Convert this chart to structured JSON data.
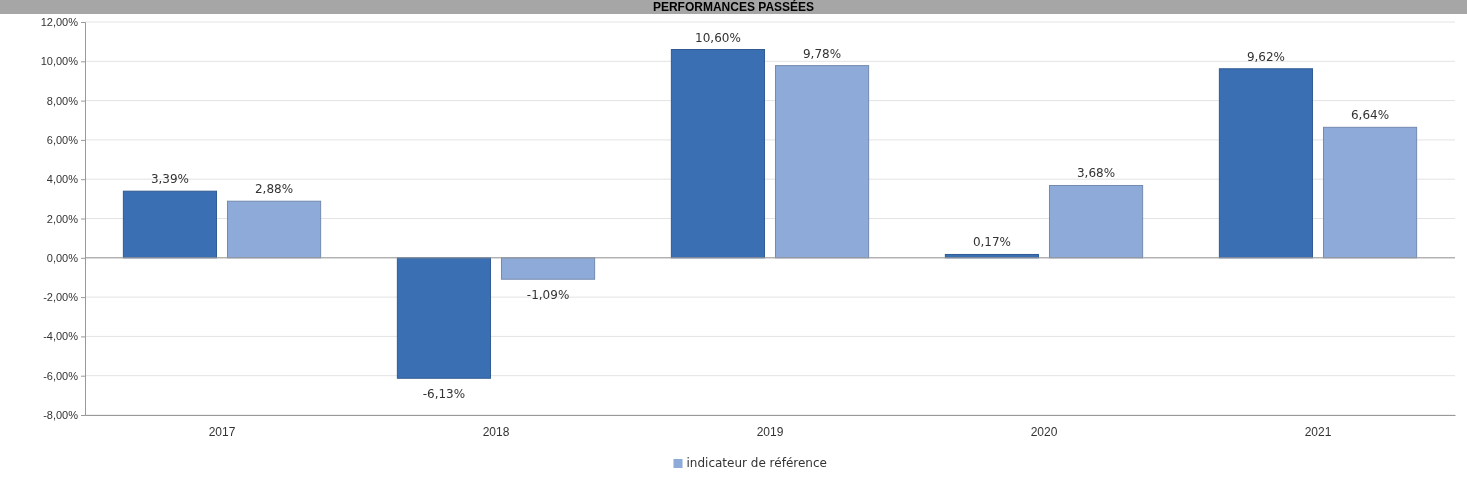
{
  "chart_data": {
    "type": "bar",
    "title": "PERFORMANCES PASSÉES",
    "categories": [
      "2017",
      "2018",
      "2019",
      "2020",
      "2021"
    ],
    "series": [
      {
        "color": "#3b6fb3",
        "values": [
          3.39,
          -6.13,
          10.6,
          0.17,
          9.62
        ],
        "value_labels": [
          "3,39%",
          "-6,13%",
          "10,60%",
          "0,17%",
          "9,62%"
        ]
      },
      {
        "name": "indicateur de référence",
        "color": "#8eaad8",
        "values": [
          2.88,
          -1.09,
          9.78,
          3.68,
          6.64
        ],
        "value_labels": [
          "2,88%",
          "-1,09%",
          "9,78%",
          "3,68%",
          "6,64%"
        ]
      }
    ],
    "ylim": [
      -8,
      12
    ],
    "yticks": [
      {
        "value": -8,
        "label": "-8,00%"
      },
      {
        "value": -6,
        "label": "-6,00%"
      },
      {
        "value": -4,
        "label": "-4,00%"
      },
      {
        "value": -2,
        "label": "-2,00%"
      },
      {
        "value": 0,
        "label": "0,00%"
      },
      {
        "value": 2,
        "label": "2,00%"
      },
      {
        "value": 4,
        "label": "4,00%"
      },
      {
        "value": 6,
        "label": "6,00%"
      },
      {
        "value": 8,
        "label": "8,00%"
      },
      {
        "value": 10,
        "label": "10,00%"
      },
      {
        "value": 12,
        "label": "12,00%"
      }
    ],
    "grid": "y",
    "legend": "bottom"
  }
}
